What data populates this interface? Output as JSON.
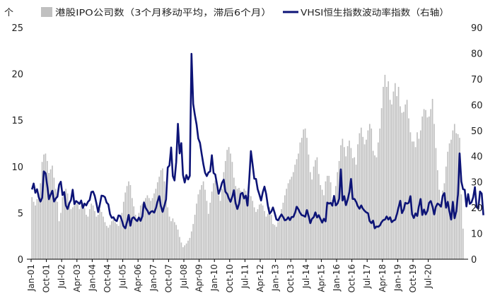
{
  "chart_data": {
    "type": "bar",
    "ylabel_left": "个",
    "ylim_left": [
      0,
      25
    ],
    "yticks_left": [
      "0",
      "5",
      "10",
      "15",
      "20",
      "25"
    ],
    "ylim_right": [
      0,
      90
    ],
    "yticks_right": [
      "0",
      "10",
      "20",
      "30",
      "40",
      "50",
      "60",
      "70",
      "80",
      "90"
    ],
    "x_tick_labels": [
      "Jan-01",
      "Oct-01",
      "Jul-02",
      "Apr-03",
      "Jan-04",
      "Oct-04",
      "Jul-05",
      "Apr-06",
      "Jan-07",
      "Oct-07",
      "Jul-08",
      "Apr-09",
      "Jan-10",
      "Oct-10",
      "Jul-11",
      "Apr-12",
      "Jan-13",
      "Oct-13",
      "Jul-14",
      "Apr-15",
      "Jan-16",
      "Oct-16",
      "Jul-17",
      "Apr-18",
      "Jan-19",
      "Oct-19",
      "Jul-20"
    ],
    "legend_position": "top",
    "grid": false,
    "colors": {
      "bars": "#c0c0c0",
      "line": "#0d1477"
    },
    "series": [
      {
        "name": "港股IPO公司数（3个月移动平均，滞后6个月）",
        "kind": "bar",
        "axis": "left",
        "values": [
          6.7,
          6.2,
          5.8,
          6.5,
          7.1,
          8.2,
          10.5,
          11.3,
          11.4,
          10.6,
          9.3,
          9.7,
          10.1,
          8.8,
          7.6,
          6.2,
          4.1,
          5.0,
          6.7,
          7.3,
          7.6,
          7.1,
          6.2,
          5.4,
          5.6,
          5.8,
          6.0,
          6.2,
          5.4,
          5.8,
          6.1,
          5.5,
          4.8,
          4.6,
          5.4,
          6.0,
          5.8,
          5.2,
          4.6,
          4.8,
          5.4,
          5.1,
          4.6,
          4.0,
          3.6,
          3.4,
          3.7,
          4.1,
          4.4,
          4.0,
          3.8,
          3.6,
          4.2,
          5.0,
          6.2,
          7.2,
          7.9,
          8.4,
          8.0,
          6.6,
          5.7,
          4.8,
          4.4,
          5.0,
          5.8,
          6.0,
          6.3,
          6.6,
          6.9,
          6.6,
          6.3,
          6.6,
          7.1,
          7.6,
          8.3,
          8.9,
          9.6,
          9.8,
          8.4,
          7.0,
          5.6,
          4.6,
          4.1,
          4.4,
          4.0,
          3.7,
          3.2,
          2.4,
          1.8,
          1.3,
          1.5,
          1.7,
          2.0,
          2.3,
          3.0,
          3.8,
          4.8,
          6.0,
          7.0,
          7.5,
          8.0,
          8.4,
          7.5,
          6.3,
          4.9,
          6.1,
          7.3,
          8.2,
          8.5,
          8.1,
          6.9,
          6.3,
          7.6,
          9.4,
          10.6,
          11.8,
          12.1,
          11.4,
          10.5,
          8.8,
          7.9,
          7.6,
          7.7,
          7.4,
          7.2,
          7.6,
          7.4,
          6.8,
          6.9,
          6.8,
          6.3,
          5.6,
          5.1,
          5.4,
          5.9,
          6.0,
          5.8,
          5.2,
          4.6,
          4.9,
          5.6,
          4.8,
          3.8,
          3.7,
          3.5,
          4.0,
          4.7,
          5.4,
          6.1,
          6.9,
          7.6,
          8.2,
          8.6,
          8.9,
          9.4,
          10.2,
          10.8,
          11.4,
          12.6,
          13.1,
          14.0,
          14.1,
          13.1,
          11.3,
          9.4,
          8.6,
          10.0,
          10.7,
          11.0,
          9.2,
          8.0,
          7.5,
          6.9,
          8.4,
          9.0,
          9.0,
          8.3,
          6.4,
          5.9,
          7.9,
          9.4,
          10.6,
          12.3,
          13.0,
          12.1,
          11.1,
          12.2,
          12.8,
          12.0,
          10.9,
          11.0,
          10.2,
          12.4,
          13.6,
          14.2,
          13.2,
          12.4,
          12.9,
          13.9,
          14.6,
          14.1,
          11.7,
          11.2,
          11.0,
          12.6,
          14.1,
          16.3,
          18.6,
          19.9,
          18.6,
          19.2,
          17.2,
          16.7,
          18.1,
          19.0,
          17.6,
          18.6,
          16.5,
          15.8,
          15.9,
          16.7,
          17.2,
          15.2,
          13.7,
          12.7,
          12.7,
          12.1,
          13.7,
          13.0,
          13.9,
          15.4,
          16.2,
          16.1,
          15.3,
          15.4,
          16.2,
          17.3,
          14.6,
          12.0,
          9.6,
          7.5,
          6.2,
          7.4,
          8.2,
          10.0,
          11.6,
          12.5,
          12.9,
          13.9,
          14.6,
          13.6,
          13.5,
          13.1,
          7.0,
          3.3
        ]
      },
      {
        "name": "VHSI恒生指数波动率指数（右轴）",
        "kind": "line",
        "axis": "right",
        "values": [
          27.1,
          29.4,
          25.8,
          27.2,
          24.1,
          22.4,
          23.8,
          34.1,
          33.4,
          28.6,
          23.3,
          25.1,
          26.6,
          22.4,
          23.6,
          24.3,
          28.9,
          30.1,
          24.9,
          26.1,
          20.8,
          19.5,
          21.7,
          23.0,
          27.0,
          21.4,
          22.6,
          22.1,
          21.5,
          22.8,
          19.9,
          21.6,
          20.9,
          22.3,
          23.0,
          26.1,
          26.3,
          24.6,
          21.6,
          18.3,
          21.3,
          24.7,
          24.6,
          24.1,
          22.0,
          21.3,
          17.5,
          16.1,
          16.3,
          15.2,
          14.8,
          17.0,
          16.8,
          15.0,
          12.8,
          12.0,
          14.4,
          17.2,
          13.0,
          15.9,
          16.3,
          15.4,
          14.8,
          16.2,
          14.9,
          16.6,
          22.0,
          19.9,
          18.9,
          17.5,
          18.4,
          18.7,
          18.1,
          19.8,
          22.4,
          24.5,
          20.5,
          18.4,
          20.7,
          23.2,
          35.6,
          36.4,
          43.4,
          32.3,
          30.6,
          37.8,
          52.6,
          41.1,
          45.1,
          32.7,
          29.8,
          32.7,
          31.0,
          32.4,
          79.8,
          60.3,
          56.0,
          52.3,
          46.9,
          45.2,
          40.9,
          36.9,
          33.6,
          32.3,
          33.7,
          34.1,
          40.4,
          33.5,
          32.9,
          29.2,
          25.4,
          27.3,
          29.7,
          30.9,
          26.2,
          25.4,
          23.6,
          22.3,
          24.2,
          26.8,
          21.7,
          19.5,
          21.4,
          25.4,
          25.8,
          23.6,
          24.7,
          20.8,
          30.7,
          42.0,
          36.8,
          31.3,
          31.2,
          27.2,
          25.1,
          22.8,
          26.0,
          28.2,
          25.3,
          20.8,
          17.7,
          18.5,
          20.1,
          18.0,
          15.5,
          15.1,
          16.3,
          17.4,
          16.4,
          15.1,
          15.4,
          16.3,
          15.2,
          16.4,
          16.4,
          18.0,
          20.4,
          19.4,
          18.0,
          17.1,
          16.9,
          16.5,
          19.1,
          16.8,
          14.0,
          15.7,
          16.3,
          18.2,
          16.2,
          17.1,
          15.6,
          14.2,
          15.7,
          14.7,
          22.0,
          21.6,
          21.9,
          20.8,
          24.6,
          20.9,
          21.6,
          23.4,
          34.9,
          22.8,
          24.5,
          21.0,
          23.1,
          26.0,
          31.2,
          23.4,
          23.4,
          22.3,
          20.6,
          19.6,
          20.9,
          19.6,
          18.8,
          18.2,
          17.9,
          14.8,
          14.0,
          15.0,
          12.0,
          12.7,
          12.6,
          13.1,
          14.4,
          15.2,
          15.4,
          16.6,
          15.4,
          16.3,
          14.4,
          15.0,
          15.3,
          17.4,
          20.1,
          22.7,
          17.9,
          19.2,
          21.9,
          21.6,
          21.9,
          24.5,
          17.4,
          16.0,
          17.8,
          16.8,
          20.6,
          23.4,
          17.2,
          19.3,
          17.4,
          18.7,
          21.9,
          22.6,
          20.5,
          17.4,
          20.4,
          21.6,
          21.2,
          20.4,
          24.6,
          25.7,
          20.0,
          22.3,
          18.5,
          15.4,
          22.3,
          15.9,
          18.5,
          25.0,
          41.1,
          30.2,
          27.2,
          27.0,
          20.5,
          25.3,
          21.5,
          22.1,
          24.1,
          28.0,
          20.2,
          19.7,
          26.3,
          25.5,
          17.1
        ]
      }
    ]
  }
}
